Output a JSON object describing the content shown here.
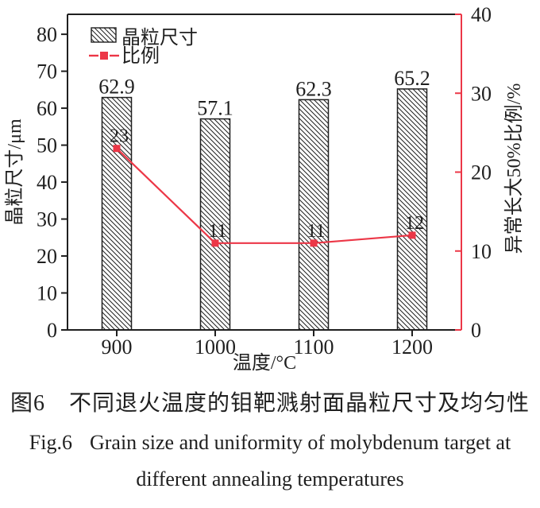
{
  "colors": {
    "ink": "#1f1f1f",
    "accent_red": "#ec3747",
    "background": "#ffffff"
  },
  "chart_data": {
    "type": "bar",
    "combo": "bar+line dual-axis",
    "categories": [
      "900",
      "1000",
      "1100",
      "1200"
    ],
    "series": [
      {
        "name": "晶粒尺寸",
        "type": "bar",
        "axis": "left",
        "values": [
          62.9,
          57.1,
          62.3,
          65.2
        ],
        "point_labels": [
          "62.9",
          "57.1",
          "62.3",
          "65.2"
        ],
        "fill": "white",
        "hatch": "\\",
        "edge_color": "#1f1f1f"
      },
      {
        "name": "比例",
        "type": "line",
        "axis": "right",
        "values": [
          23,
          11,
          11,
          12
        ],
        "point_labels": [
          "23",
          "11",
          "11",
          "12"
        ],
        "color": "#ec3747",
        "marker": "square"
      }
    ],
    "x_axis": {
      "label": "温度/°C",
      "tick_labels": [
        "900",
        "1000",
        "1100",
        "1200"
      ]
    },
    "left_axis": {
      "label": "晶粒尺寸/μm",
      "ticks": [
        0,
        10,
        20,
        30,
        40,
        50,
        60,
        70,
        80
      ],
      "range": [
        0,
        85.4
      ]
    },
    "right_axis": {
      "label": "异常长大50%比例/%",
      "ticks": [
        0,
        10,
        20,
        30,
        40
      ],
      "range": [
        0,
        40
      ],
      "spine_color": "#ec3747"
    },
    "legend": {
      "position": "top-left",
      "entries": [
        "晶粒尺寸",
        "比例"
      ]
    },
    "grid": false
  },
  "figure": {
    "caption_zh_fig": "图6",
    "caption_zh_title": "不同退火温度的钼靶溅射面晶粒尺寸及均匀性",
    "caption_en_fig": "Fig.6",
    "caption_en_title_line1": "Grain size and uniformity of molybdenum target at",
    "caption_en_title_line2": "different annealing temperatures"
  }
}
